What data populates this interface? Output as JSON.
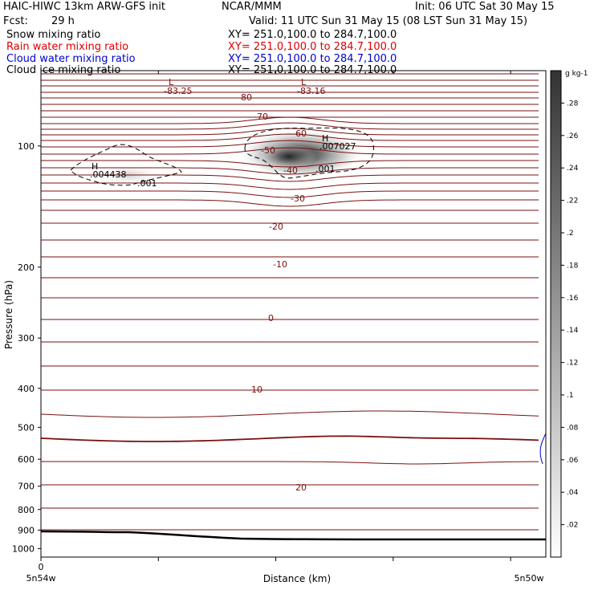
{
  "header": {
    "model": "HAIC-HIWC 13km ARW-GFS init",
    "org": "NCAR/MMM",
    "init": "Init: 06 UTC Sat 30 May 15",
    "fcst_label": "Fcst:",
    "fcst_value": "29 h",
    "valid": "Valid: 11 UTC Sun 31 May 15 (08 LST Sun 31 May 15)",
    "fields": [
      {
        "name": "Snow mixing ratio",
        "xy": "XY= 251.0,100.0 to 284.7,100.0",
        "color": "#000000"
      },
      {
        "name": "Rain water mixing ratio",
        "xy": "XY= 251.0,100.0 to 284.7,100.0",
        "color": "#e00000"
      },
      {
        "name": "Cloud water mixing ratio",
        "xy": "XY= 251.0,100.0 to 284.7,100.0",
        "color": "#0000d0"
      },
      {
        "name": "Cloud ice mixing ratio",
        "xy": "XY= 251.0,100.0 to 284.7,100.0",
        "color": "#000000"
      }
    ]
  },
  "colors": {
    "temperature_contour": "#7a1010",
    "snow_shading": "#000000",
    "cloud_ice_contour": "#000000",
    "cloud_water_contour": "#0000d0"
  },
  "chart_data": {
    "type": "contour",
    "ylabel": "Pressure (hPa)",
    "xlabel": "Distance (km)",
    "y_scale": "log",
    "ylim": [
      1050,
      65
    ],
    "y_ticks": [
      "100",
      "200",
      "300",
      "400",
      "500",
      "600",
      "700",
      "800",
      "900",
      "1000"
    ],
    "x_ticks": [
      "0"
    ],
    "x_endpoints": [
      "5n54w",
      "5n50w"
    ],
    "colorbar": {
      "units": "g kg-1",
      "ticks": [
        ".02",
        ".04",
        ".06",
        ".08",
        ".1",
        ".12",
        ".14",
        ".16",
        ".18",
        ".2",
        ".22",
        ".24",
        ".26",
        ".28"
      ],
      "range": [
        0,
        0.3
      ]
    },
    "temperature_contour_labels": [
      "-80",
      "-70",
      "-60",
      "-50",
      "-40",
      "-30",
      "-20",
      "-10",
      "0",
      "10",
      "20"
    ],
    "extrema": [
      {
        "kind": "L",
        "value": "-83.25"
      },
      {
        "kind": "L",
        "value": "-83.16"
      },
      {
        "kind": "H",
        "value": ".004438"
      },
      {
        "kind": "H",
        "value": ".007027"
      }
    ],
    "cloud_ice_labels": [
      ".001",
      ".001"
    ]
  }
}
